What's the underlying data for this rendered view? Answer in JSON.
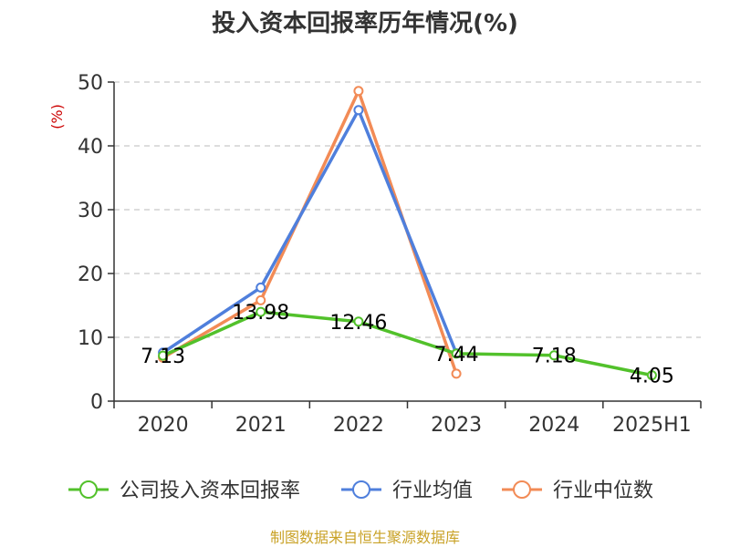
{
  "chart_data": {
    "type": "line",
    "title": "投入资本回报率历年情况(%)",
    "ylabel": "(%)",
    "xlabel": "",
    "ylim": [
      0,
      50
    ],
    "yticks": [
      0,
      10,
      20,
      30,
      40,
      50
    ],
    "grid": "horizontal-dashed",
    "legend_position": "bottom",
    "categories": [
      "2020",
      "2021",
      "2022",
      "2023",
      "2024",
      "2025H1"
    ],
    "series": [
      {
        "name": "公司投入资本回报率",
        "color": "#52c12b",
        "values": [
          7.13,
          13.98,
          12.46,
          7.44,
          7.18,
          4.05
        ],
        "labels": [
          "7.13",
          "13.98",
          "12.46",
          "7.44",
          "7.18",
          "4.05"
        ]
      },
      {
        "name": "行业均值",
        "color": "#4f7fdc",
        "values": [
          7.6,
          17.8,
          45.6,
          7.5,
          null,
          null
        ]
      },
      {
        "name": "行业中位数",
        "color": "#f28b56",
        "values": [
          6.8,
          15.8,
          48.6,
          4.3,
          null,
          null
        ]
      }
    ],
    "source": "制图数据来自恒生聚源数据库"
  }
}
